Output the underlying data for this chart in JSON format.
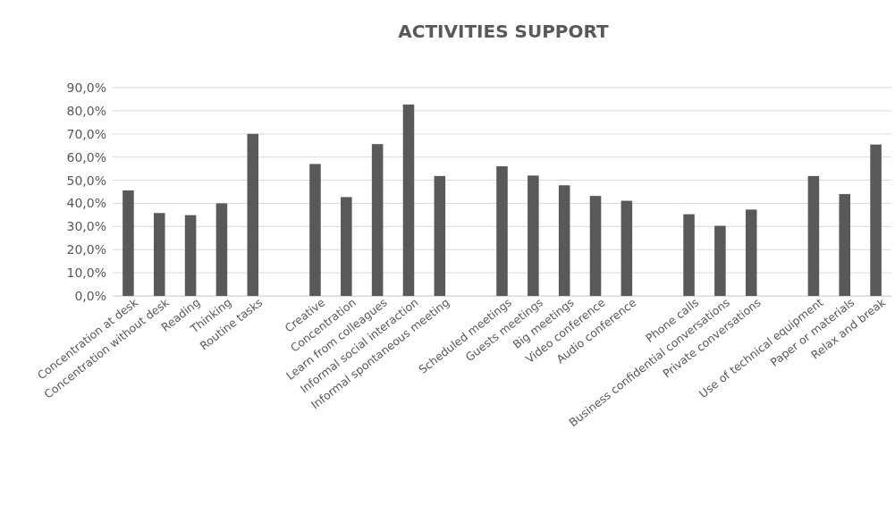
{
  "chart_data": {
    "type": "bar",
    "title": "ACTIVITIES SUPPORT",
    "categories": [
      "Concentration at desk",
      "Concentration without desk",
      "Reading",
      "Thinking",
      "Routine tasks",
      null,
      "Creative",
      "Concentration",
      "Learn from colleagues",
      "Informal social interaction",
      "Informal spontaneous meeting",
      null,
      "Scheduled meetings",
      "Guests meetings",
      "Big meetings",
      "Video conference",
      "Audio conference",
      null,
      "Phone calls",
      "Business confidential conversations",
      "Private conversations",
      null,
      "Use of technical equipment",
      "Paper or materials",
      "Relax and break"
    ],
    "values": [
      45.6,
      35.8,
      34.9,
      40.0,
      70.0,
      null,
      57.0,
      42.7,
      65.6,
      82.7,
      51.8,
      null,
      56.0,
      52.0,
      47.8,
      43.2,
      41.1,
      null,
      35.3,
      30.3,
      37.3,
      null,
      51.8,
      44.0,
      65.4
    ],
    "color": "#595959",
    "ylim": [
      0,
      90
    ],
    "yticks": [
      {
        "value": 0,
        "label": "0,0%"
      },
      {
        "value": 10,
        "label": "10,0%"
      },
      {
        "value": 20,
        "label": "20,0%"
      },
      {
        "value": 30,
        "label": "30,0%"
      },
      {
        "value": 40,
        "label": "40,0%"
      },
      {
        "value": 50,
        "label": "50,0%"
      },
      {
        "value": 60,
        "label": "60,0%"
      },
      {
        "value": 70,
        "label": "70,0%"
      },
      {
        "value": 80,
        "label": "80,0%"
      },
      {
        "value": 90,
        "label": "90,0%"
      }
    ],
    "grid": "y"
  }
}
